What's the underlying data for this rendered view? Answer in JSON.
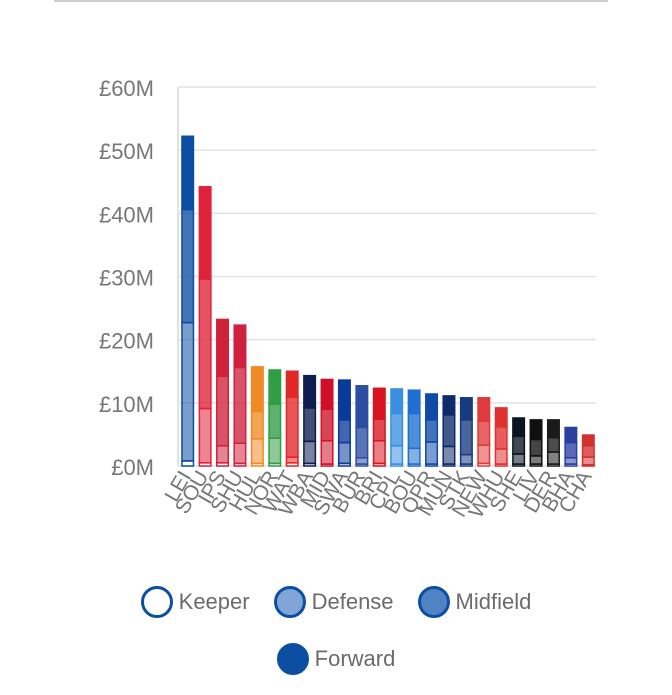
{
  "chart_data": {
    "type": "bar",
    "stacked": true,
    "ylim": [
      0,
      60
    ],
    "y_ticks": [
      "£0M",
      "£10M",
      "£20M",
      "£30M",
      "£40M",
      "£50M",
      "£60M"
    ],
    "grid": true,
    "categories": [
      "LEI",
      "SOU",
      "IPS",
      "SHU",
      "HUL",
      "NOR",
      "WAT",
      "WBA",
      "MID",
      "SWA",
      "BUR",
      "BRI",
      "CPL",
      "BOU",
      "QPR",
      "MUN",
      "STK",
      "NEW",
      "WHU",
      "SHE",
      "LIV",
      "DER",
      "BHA",
      "CHA"
    ],
    "totals": [
      52.2,
      44.2,
      23.2,
      22.3,
      15.7,
      15.2,
      15.0,
      14.3,
      13.7,
      13.6,
      12.7,
      12.3,
      12.2,
      12.0,
      11.4,
      11.1,
      10.8,
      10.8,
      9.2,
      7.6,
      7.3,
      7.3,
      6.1,
      4.9
    ],
    "colors": [
      "#0b4ea2",
      "#e0213a",
      "#d0213a",
      "#d02040",
      "#f08a24",
      "#2f9e45",
      "#e02828",
      "#0d1d4f",
      "#d01028",
      "#0b3b99",
      "#2b4ea2",
      "#d81420",
      "#3b8fe0",
      "#1e6fd0",
      "#0f4aa8",
      "#0d2a6a",
      "#173a80",
      "#e03a3a",
      "#e03030",
      "#0b1420",
      "#101010",
      "#1a1a1a",
      "#2b3fa0",
      "#d43030"
    ],
    "series": [
      {
        "name": "Keeper",
        "values": [
          0.8,
          0.5,
          0.5,
          0.4,
          0.4,
          0.4,
          0.5,
          0.4,
          0.3,
          0.4,
          0.3,
          0.4,
          0.3,
          0.3,
          0.3,
          0.3,
          0.3,
          0.4,
          0.3,
          0.3,
          0.3,
          0.3,
          0.3,
          0.2
        ]
      },
      {
        "name": "Defense",
        "values": [
          21.9,
          8.6,
          2.7,
          3.2,
          3.9,
          4.0,
          0.9,
          3.5,
          3.7,
          3.3,
          1.0,
          3.6,
          2.9,
          2.5,
          3.5,
          2.8,
          1.5,
          2.9,
          2.4,
          1.6,
          1.3,
          1.9,
          1.0,
          1.2
        ]
      },
      {
        "name": "Midfield",
        "values": [
          17.9,
          20.5,
          11.0,
          12.0,
          4.3,
          5.4,
          9.5,
          5.3,
          5.0,
          3.6,
          4.8,
          3.4,
          5.1,
          5.5,
          3.5,
          5.0,
          5.5,
          3.8,
          3.5,
          2.8,
          2.6,
          2.3,
          2.4,
          1.8
        ]
      },
      {
        "name": "Forward",
        "values": [
          11.6,
          14.6,
          9.0,
          6.7,
          7.1,
          5.4,
          4.1,
          5.1,
          4.7,
          6.3,
          6.6,
          4.9,
          3.9,
          3.7,
          4.1,
          3.0,
          3.5,
          3.7,
          3.0,
          2.9,
          3.1,
          2.8,
          2.4,
          1.7
        ]
      }
    ]
  },
  "legend": [
    {
      "label": "Keeper"
    },
    {
      "label": "Defense"
    },
    {
      "label": "Midfield"
    },
    {
      "label": "Forward"
    }
  ]
}
